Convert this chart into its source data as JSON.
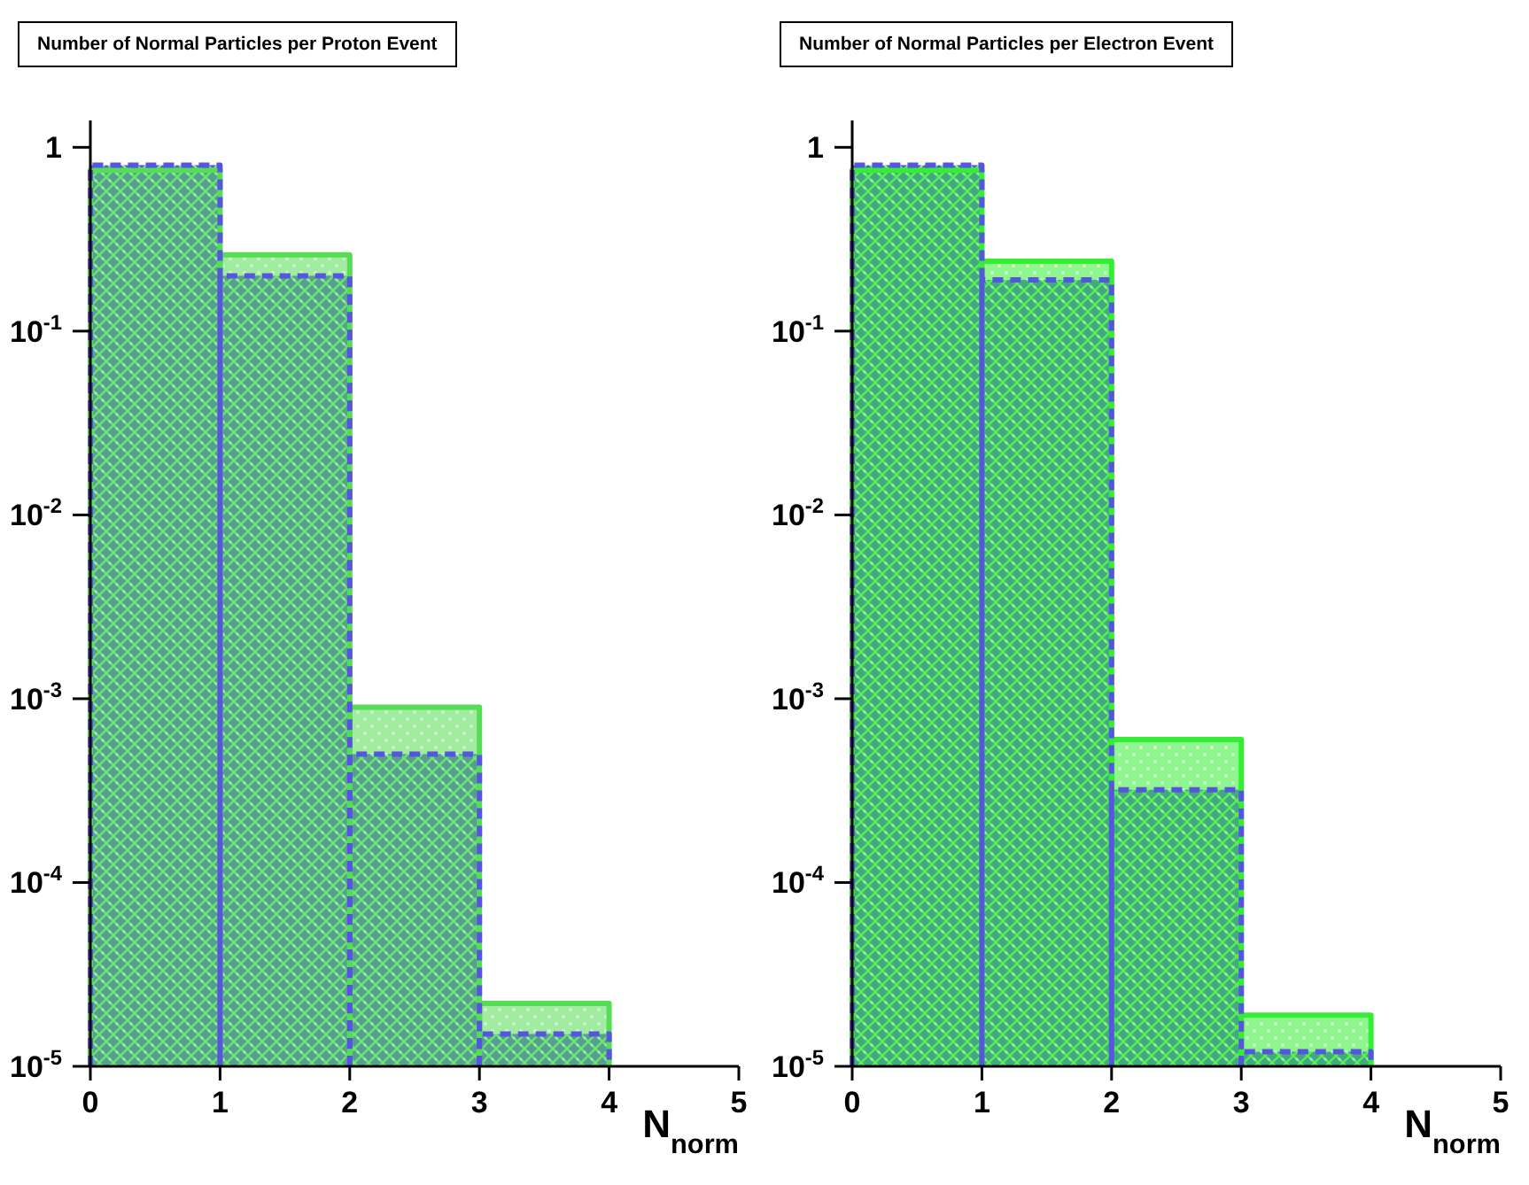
{
  "chart_data": [
    {
      "type": "histogram",
      "title": "Number of Normal Particles per Proton Event",
      "xlabel": "N$_{norm}$",
      "bins": [
        0,
        1,
        2,
        3,
        4,
        5
      ],
      "log": "y",
      "grid": false,
      "legend": false,
      "xlim": [
        0,
        5
      ],
      "xticks": [
        0,
        1,
        2,
        3,
        4,
        5
      ],
      "ylim": [
        1e-05,
        1.4
      ],
      "yticks": [
        {
          "value": 1e-05,
          "label": "10$^{-5}$"
        },
        {
          "value": 0.0001,
          "label": "10$^{-4}$"
        },
        {
          "value": 0.001,
          "label": "10$^{-3}$"
        },
        {
          "value": 0.01,
          "label": "10$^{-2}$"
        },
        {
          "value": 0.1,
          "label": "10$^{-1}$"
        },
        {
          "value": 1,
          "label": "1"
        }
      ],
      "series": [
        {
          "color": "#55dd55",
          "line_style": "solid",
          "values": [
            0.75,
            0.26,
            0.0009,
            2.2e-05,
            null
          ]
        },
        {
          "color": "#5555dd",
          "line_style": "dashed",
          "values": [
            0.8,
            0.2,
            0.0005,
            1.5e-05,
            null
          ]
        }
      ]
    },
    {
      "type": "histogram",
      "title": "Number of Normal Particles per Electron Event",
      "xlabel": "N$_{norm}$",
      "bins": [
        0,
        1,
        2,
        3,
        4,
        5
      ],
      "log": "y",
      "grid": false,
      "legend": false,
      "xlim": [
        0,
        5
      ],
      "xticks": [
        0,
        1,
        2,
        3,
        4,
        5
      ],
      "ylim": [
        1e-05,
        1.4
      ],
      "yticks": [
        {
          "value": 1e-05,
          "label": "10$^{-5}$"
        },
        {
          "value": 0.0001,
          "label": "10$^{-4}$"
        },
        {
          "value": 0.001,
          "label": "10$^{-3}$"
        },
        {
          "value": 0.01,
          "label": "10$^{-2}$"
        },
        {
          "value": 0.1,
          "label": "10$^{-1}$"
        },
        {
          "value": 1,
          "label": "1"
        }
      ],
      "series": [
        {
          "color": "#33ee33",
          "line_style": "solid",
          "values": [
            0.75,
            0.24,
            0.0006,
            1.9e-05,
            null
          ]
        },
        {
          "color": "#5555dd",
          "line_style": "dashed",
          "values": [
            0.8,
            0.19,
            0.00032,
            1.2e-05,
            null
          ]
        }
      ]
    }
  ]
}
